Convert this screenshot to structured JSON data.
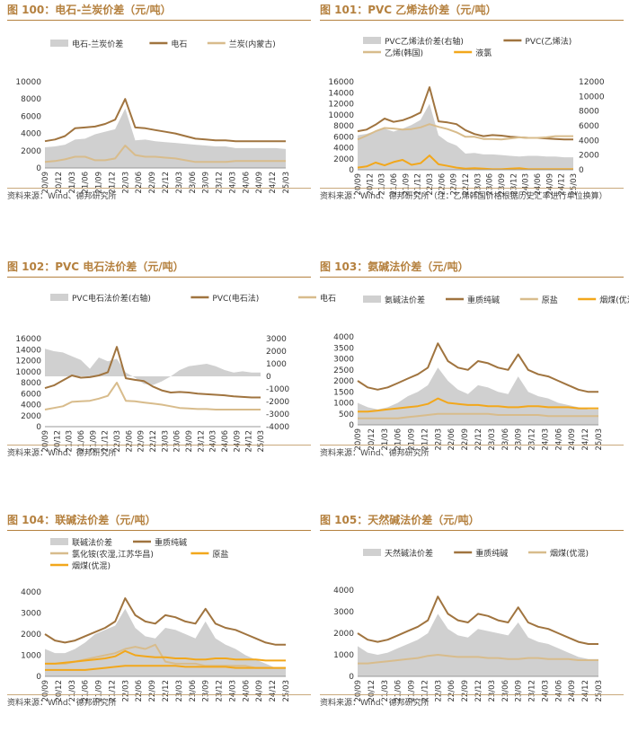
{
  "colors": {
    "accent": "#b5813f",
    "gray": "#d0d0d0",
    "brown": "#a0743f",
    "tan": "#d8bc8c",
    "orange": "#f2a71b"
  },
  "x_ticks": [
    "20/09",
    "20/12",
    "21/03",
    "21/06",
    "21/09",
    "21/12",
    "22/03",
    "22/06",
    "22/09",
    "22/12",
    "23/03",
    "23/06",
    "23/09",
    "23/12",
    "24/03",
    "24/06",
    "24/09",
    "24/12",
    "25/03"
  ],
  "chart_data": [
    {
      "type": "area",
      "title": "图 100：电石-兰炭价差（元/吨）",
      "source": "资料来源：Wind、德邦研究所",
      "ylim": [
        0,
        10000
      ],
      "y_ticks": [
        "0",
        "2000",
        "4000",
        "6000",
        "8000",
        "10000"
      ],
      "y2_ticks": [],
      "series": [
        {
          "name": "电石-兰炭价差",
          "kind": "area",
          "axis": "left",
          "color": "#d0d0d0",
          "values": [
            2400,
            2500,
            2700,
            3300,
            3400,
            3900,
            4200,
            4500,
            6900,
            3200,
            3300,
            3100,
            3000,
            2900,
            2800,
            2700,
            2600,
            2500,
            2500,
            2300,
            2300,
            2300,
            2300,
            2300,
            2200
          ]
        },
        {
          "name": "电石",
          "kind": "line",
          "axis": "left",
          "color": "#a0743f",
          "values": [
            3100,
            3300,
            3700,
            4600,
            4700,
            4800,
            5100,
            5600,
            8000,
            4700,
            4600,
            4400,
            4200,
            4000,
            3700,
            3400,
            3300,
            3200,
            3200,
            3100,
            3100,
            3100,
            3100,
            3100,
            3100
          ]
        },
        {
          "name": "兰炭(内蒙古)",
          "kind": "line",
          "axis": "left",
          "color": "#d8bc8c",
          "values": [
            700,
            800,
            1000,
            1300,
            1300,
            900,
            900,
            1100,
            2600,
            1500,
            1300,
            1300,
            1200,
            1100,
            900,
            700,
            700,
            700,
            700,
            800,
            800,
            800,
            800,
            800,
            800
          ]
        }
      ]
    },
    {
      "type": "area",
      "title": "图 101：PVC 乙烯法价差（元/吨）",
      "source": "资料来源：Wind、德邦研究所（注：乙烯韩国价格根据历史汇率进行单位换算）",
      "ylim": [
        0,
        16000
      ],
      "y2lim": [
        0,
        12000
      ],
      "y_ticks": [
        "0",
        "2000",
        "4000",
        "6000",
        "8000",
        "10000",
        "12000",
        "14000",
        "16000"
      ],
      "y2_ticks": [
        "0",
        "2000",
        "4000",
        "6000",
        "8000",
        "10000",
        "12000"
      ],
      "series": [
        {
          "name": "PVC乙烯法价差(右轴)",
          "kind": "area",
          "axis": "right",
          "color": "#d0d0d0",
          "values": [
            4700,
            4900,
            5300,
            5600,
            5200,
            5600,
            6100,
            6800,
            9000,
            4700,
            3800,
            3300,
            2200,
            2300,
            2100,
            2100,
            2000,
            1900,
            1800,
            1900,
            1900,
            1800,
            1800,
            1700,
            1700
          ]
        },
        {
          "name": "PVC(乙烯法)",
          "kind": "line",
          "axis": "left",
          "color": "#a0743f",
          "values": [
            7000,
            7300,
            8200,
            9300,
            8700,
            9000,
            9600,
            10400,
            15000,
            8800,
            8600,
            8300,
            7200,
            6500,
            6100,
            6300,
            6200,
            6000,
            5900,
            5800,
            5800,
            5700,
            5600,
            5500,
            5500
          ]
        },
        {
          "name": "乙烯(韩国)",
          "kind": "line",
          "axis": "left",
          "color": "#d8bc8c",
          "values": [
            5500,
            6200,
            7000,
            7600,
            7500,
            7300,
            7400,
            7700,
            8300,
            7800,
            7400,
            6800,
            6000,
            6000,
            5600,
            5600,
            5500,
            5700,
            5900,
            5800,
            5800,
            5900,
            6100,
            6100,
            6100
          ]
        },
        {
          "name": "液氯",
          "kind": "line",
          "axis": "left",
          "color": "#f2a71b",
          "values": [
            400,
            600,
            1300,
            800,
            1400,
            1800,
            900,
            1200,
            2600,
            1000,
            700,
            400,
            200,
            300,
            200,
            100,
            100,
            200,
            300,
            100,
            100,
            100,
            100,
            100,
            100
          ]
        }
      ]
    },
    {
      "type": "area",
      "title": "图 102：PVC 电石法价差（元/吨）",
      "source": "资料来源：Wind、德邦研究所",
      "ylim": [
        0,
        16000
      ],
      "y2lim": [
        -4000,
        3000
      ],
      "y_ticks": [
        "0",
        "2000",
        "4000",
        "6000",
        "8000",
        "10000",
        "12000",
        "14000",
        "16000"
      ],
      "y2_ticks": [
        "-4000",
        "-3000",
        "-2000",
        "-1000",
        "0",
        "1000",
        "2000",
        "3000"
      ],
      "series": [
        {
          "name": "PVC电石法价差(右轴)",
          "kind": "area",
          "axis": "right",
          "color": "#d0d0d0",
          "values": [
            2200,
            2000,
            1900,
            1600,
            1300,
            600,
            1500,
            1200,
            1400,
            300,
            -100,
            -600,
            -700,
            -400,
            0,
            500,
            800,
            900,
            1000,
            800,
            500,
            300,
            400,
            300,
            300
          ]
        },
        {
          "name": "PVC(电石法)",
          "kind": "line",
          "axis": "left",
          "color": "#a0743f",
          "values": [
            7000,
            7500,
            8400,
            9300,
            8900,
            9000,
            9300,
            9900,
            14500,
            8800,
            8500,
            8300,
            7300,
            6600,
            6200,
            6300,
            6200,
            6000,
            5900,
            5800,
            5700,
            5500,
            5400,
            5300,
            5300
          ]
        },
        {
          "name": "电石",
          "kind": "line",
          "axis": "left",
          "color": "#d8bc8c",
          "values": [
            3100,
            3400,
            3700,
            4500,
            4600,
            4700,
            5100,
            5600,
            8000,
            4700,
            4600,
            4400,
            4200,
            4000,
            3700,
            3400,
            3300,
            3200,
            3200,
            3100,
            3100,
            3100,
            3100,
            3100,
            3100
          ]
        }
      ]
    },
    {
      "type": "area",
      "title": "图 103：氨碱法价差（元/吨）",
      "source": "资料来源：Wind、德邦研究所",
      "ylim": [
        0,
        4000
      ],
      "y_ticks": [
        "0",
        "500",
        "1000",
        "1500",
        "2000",
        "2500",
        "3000",
        "3500",
        "4000"
      ],
      "y2_ticks": [],
      "series": [
        {
          "name": "氨碱法价差",
          "kind": "area",
          "axis": "left",
          "color": "#d0d0d0",
          "values": [
            1000,
            800,
            700,
            800,
            1000,
            1300,
            1500,
            1800,
            2600,
            2000,
            1600,
            1400,
            1800,
            1700,
            1500,
            1400,
            2200,
            1500,
            1300,
            1200,
            1000,
            900,
            800,
            700,
            700
          ]
        },
        {
          "name": "重质纯碱",
          "kind": "line",
          "axis": "left",
          "color": "#a0743f",
          "values": [
            2000,
            1700,
            1600,
            1700,
            1900,
            2100,
            2300,
            2600,
            3700,
            2900,
            2600,
            2500,
            2900,
            2800,
            2600,
            2500,
            3200,
            2500,
            2300,
            2200,
            2000,
            1800,
            1600,
            1500,
            1500
          ]
        },
        {
          "name": "原盐",
          "kind": "line",
          "axis": "left",
          "color": "#d8bc8c",
          "values": [
            300,
            300,
            300,
            300,
            300,
            350,
            400,
            450,
            500,
            500,
            500,
            500,
            500,
            500,
            450,
            450,
            450,
            450,
            450,
            400,
            400,
            400,
            400,
            400,
            400
          ]
        },
        {
          "name": "烟煤(优混)",
          "kind": "line",
          "axis": "left",
          "color": "#f2a71b",
          "values": [
            600,
            600,
            650,
            700,
            750,
            800,
            850,
            950,
            1200,
            1000,
            950,
            900,
            900,
            850,
            850,
            800,
            800,
            850,
            850,
            800,
            800,
            800,
            750,
            750,
            750
          ]
        }
      ]
    },
    {
      "type": "area",
      "title": "图 104：联碱法价差（元/吨）",
      "source": "资料来源：Wind、德邦研究所",
      "ylim": [
        0,
        4000
      ],
      "y_ticks": [
        "0",
        "1000",
        "2000",
        "3000",
        "4000"
      ],
      "y2_ticks": [],
      "series": [
        {
          "name": "联碱法价差",
          "kind": "area",
          "axis": "left",
          "color": "#d0d0d0",
          "values": [
            1300,
            1100,
            1100,
            1300,
            1600,
            2000,
            2200,
            2400,
            3200,
            2300,
            1900,
            1800,
            2300,
            2200,
            2000,
            1800,
            2600,
            1800,
            1500,
            1300,
            1000,
            800,
            600,
            400,
            400
          ]
        },
        {
          "name": "重质纯碱",
          "kind": "line",
          "axis": "left",
          "color": "#a0743f",
          "values": [
            2000,
            1700,
            1600,
            1700,
            1900,
            2100,
            2300,
            2600,
            3700,
            2900,
            2600,
            2500,
            2900,
            2800,
            2600,
            2500,
            3200,
            2500,
            2300,
            2200,
            2000,
            1800,
            1600,
            1500,
            1500
          ]
        },
        {
          "name": "氯化铵(农湿,江苏华昌)",
          "kind": "line",
          "axis": "left",
          "color": "#d8bc8c",
          "values": [
            600,
            600,
            600,
            700,
            800,
            900,
            1000,
            1100,
            1300,
            1400,
            1300,
            1500,
            700,
            600,
            600,
            600,
            500,
            500,
            500,
            500,
            500,
            400,
            400,
            400,
            400
          ]
        },
        {
          "name": "原盐",
          "kind": "line",
          "axis": "left",
          "color": "#f2a71b",
          "values": [
            300,
            300,
            300,
            300,
            300,
            350,
            400,
            450,
            500,
            500,
            500,
            500,
            500,
            500,
            450,
            450,
            450,
            450,
            450,
            400,
            400,
            400,
            400,
            400,
            400
          ]
        },
        {
          "name": "烟煤(优混)",
          "kind": "line",
          "axis": "left",
          "color": "#f2a71b",
          "values": [
            600,
            600,
            650,
            700,
            750,
            800,
            850,
            950,
            1200,
            1000,
            950,
            900,
            900,
            850,
            850,
            800,
            800,
            850,
            850,
            800,
            800,
            800,
            750,
            750,
            750
          ]
        }
      ]
    },
    {
      "type": "area",
      "title": "图 105：天然碱法价差（元/吨）",
      "source": "资料来源：Wind、德邦研究所",
      "ylim": [
        0,
        4000
      ],
      "y_ticks": [
        "0",
        "1000",
        "2000",
        "3000",
        "4000"
      ],
      "y2_ticks": [],
      "series": [
        {
          "name": "天然碱法价差",
          "kind": "area",
          "axis": "left",
          "color": "#d0d0d0",
          "values": [
            1400,
            1100,
            1000,
            1100,
            1300,
            1500,
            1700,
            2000,
            2900,
            2200,
            1900,
            1800,
            2200,
            2100,
            2000,
            1900,
            2500,
            1800,
            1600,
            1500,
            1300,
            1100,
            900,
            800,
            800
          ]
        },
        {
          "name": "重质纯碱",
          "kind": "line",
          "axis": "left",
          "color": "#a0743f",
          "values": [
            2000,
            1700,
            1600,
            1700,
            1900,
            2100,
            2300,
            2600,
            3700,
            2900,
            2600,
            2500,
            2900,
            2800,
            2600,
            2500,
            3200,
            2500,
            2300,
            2200,
            2000,
            1800,
            1600,
            1500,
            1500
          ]
        },
        {
          "name": "烟煤(优混)",
          "kind": "line",
          "axis": "left",
          "color": "#d8bc8c",
          "values": [
            600,
            600,
            650,
            700,
            750,
            800,
            850,
            950,
            1000,
            950,
            900,
            900,
            900,
            850,
            850,
            800,
            800,
            850,
            850,
            800,
            800,
            800,
            750,
            750,
            750
          ]
        }
      ]
    }
  ]
}
